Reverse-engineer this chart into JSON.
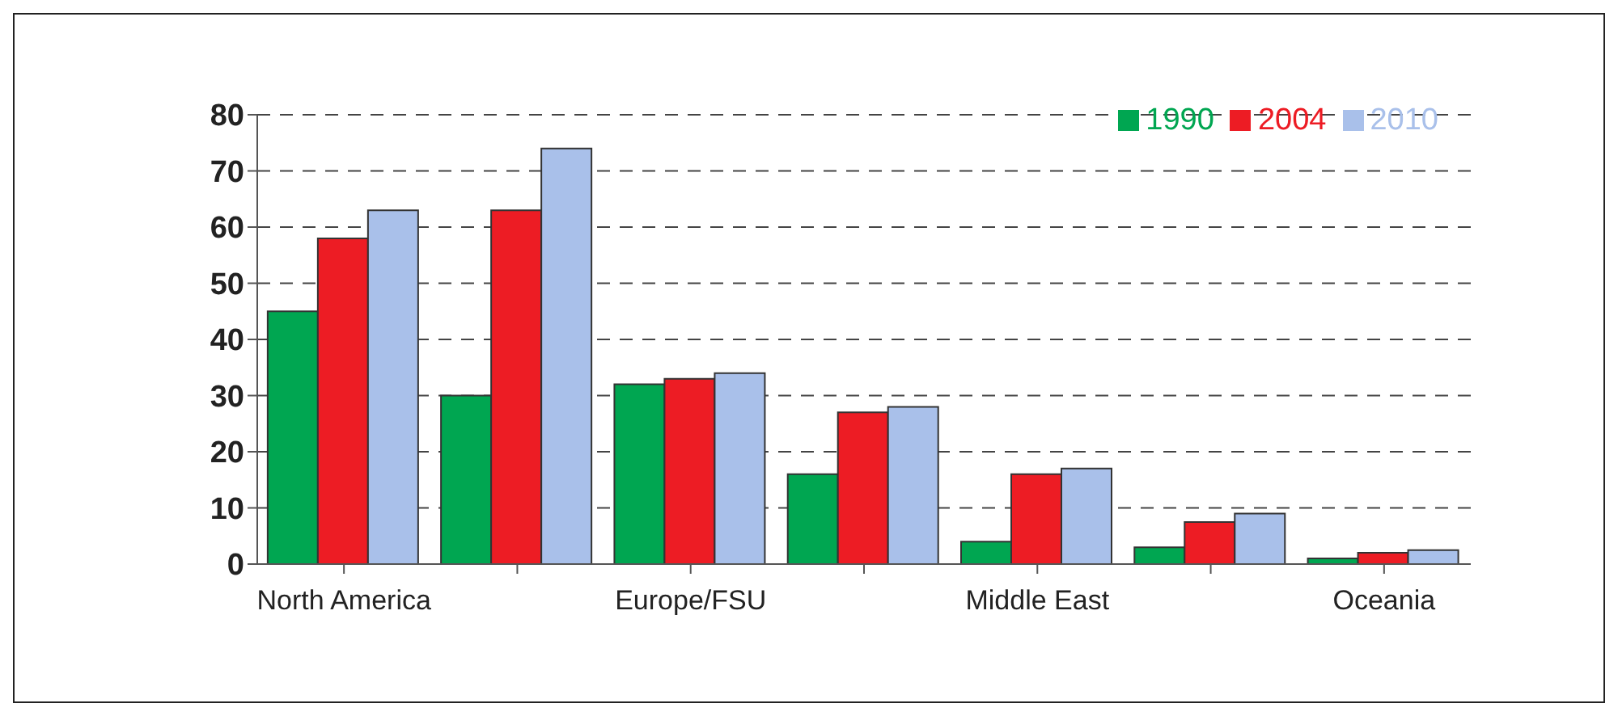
{
  "chart_data": {
    "type": "bar",
    "categories": [
      "North America",
      null,
      "Europe/FSU",
      null,
      "Middle East",
      null,
      "Oceania"
    ],
    "series": [
      {
        "name": "1990",
        "color": "#00a651",
        "values": [
          45,
          30,
          32,
          16,
          4,
          3,
          1
        ]
      },
      {
        "name": "2004",
        "color": "#ed1c24",
        "values": [
          58,
          63,
          33,
          27,
          16,
          7.5,
          2
        ]
      },
      {
        "name": "2010",
        "color": "#a9c0ea",
        "values": [
          63,
          74,
          34,
          28,
          17,
          9,
          2.5
        ]
      }
    ],
    "ylim": [
      0,
      80
    ],
    "yticks": [
      0,
      10,
      20,
      30,
      40,
      50,
      60,
      70,
      80
    ],
    "grid": "y",
    "legend": "top right"
  }
}
